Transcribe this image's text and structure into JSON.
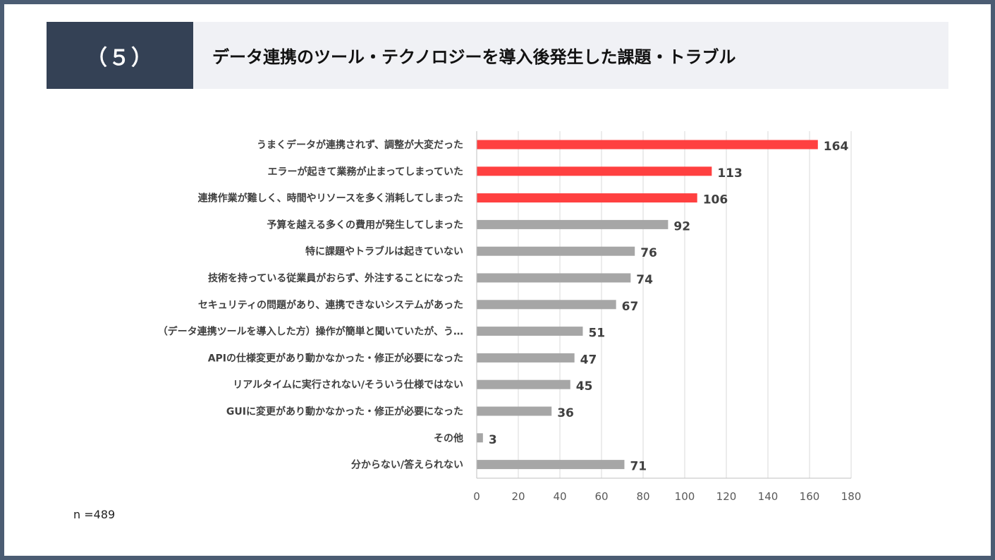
{
  "header": {
    "number": "（５）",
    "title": "データ連携のツール・テクノロジーを導入後発生した課題・トラブル"
  },
  "chart_data": {
    "type": "bar",
    "orientation": "horizontal",
    "title": "データ連携のツール・テクノロジーを導入後発生した課題・トラブル",
    "categories": [
      "うまくデータが連携されず、調整が大変だった",
      "エラーが起きて業務が止まってしまっていた",
      "連携作業が難しく、時間やリソースを多く消耗してしまった",
      "予算を越える多くの費用が発生してしまった",
      "特に課題やトラブルは起きていない",
      "技術を持っている従業員がおらず、外注することになった",
      "セキュリティの問題があり、連携できないシステムがあった",
      "（データ連携ツールを導入した方）操作が簡単と聞いていたが、う…",
      "APIの仕様変更があり動かなかった・修正が必要になった",
      "リアルタイムに実行されない/そういう仕様ではない",
      "GUIに変更があり動かなかった・修正が必要になった",
      "その他",
      "分からない/答えられない"
    ],
    "values": [
      164,
      113,
      106,
      92,
      76,
      74,
      67,
      51,
      47,
      45,
      36,
      3,
      71
    ],
    "value_labels": [
      "164",
      "113",
      "106",
      "92",
      "76",
      "74",
      "67",
      "51",
      "47",
      "45",
      "36",
      "3",
      "71"
    ],
    "highlighted": [
      true,
      true,
      true,
      false,
      false,
      false,
      false,
      false,
      false,
      false,
      false,
      false,
      false
    ],
    "xlim": [
      0,
      180
    ],
    "xticks": [
      0,
      20,
      40,
      60,
      80,
      100,
      120,
      140,
      160,
      180
    ],
    "tick_labels": [
      "0",
      "20",
      "40",
      "60",
      "80",
      "100",
      "120",
      "140",
      "160",
      "180"
    ],
    "grid": true,
    "colors": {
      "highlight": "#ff4040",
      "normal": "#a6a6a6",
      "grid": "#d9d9d9",
      "axis": "#bfbfbf"
    }
  },
  "footer": {
    "sample_size": "n =489"
  }
}
